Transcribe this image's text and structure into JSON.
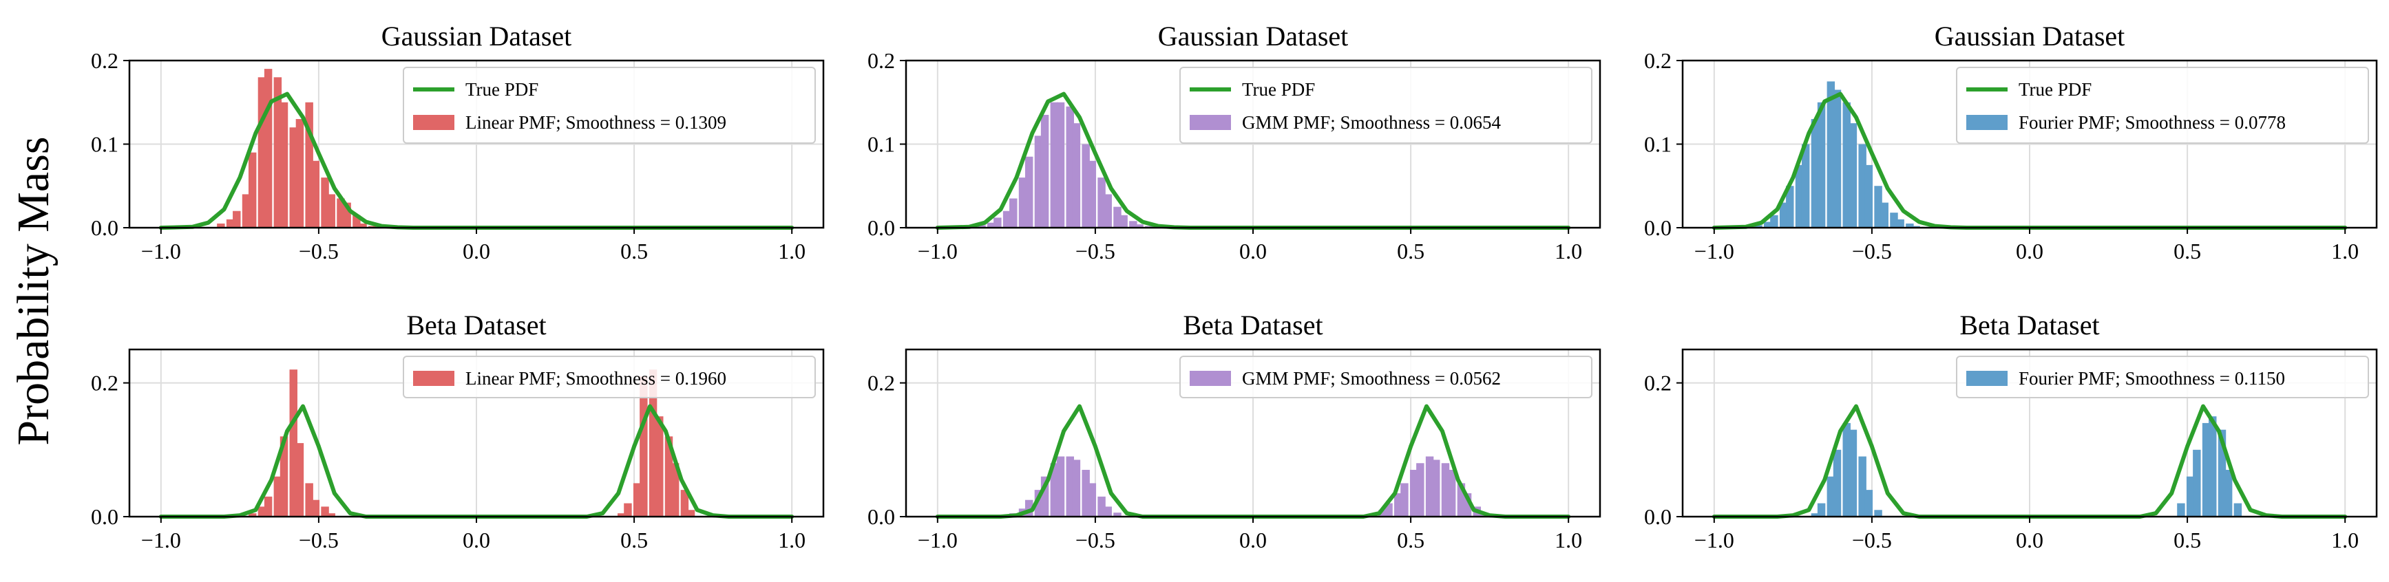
{
  "figure": {
    "ylabel": "Probability Mass"
  },
  "chart_data": [
    {
      "type": "bar",
      "title": "Gaussian Dataset",
      "xlim": [
        -1.1,
        1.1
      ],
      "ylim": [
        0,
        0.2
      ],
      "xticks": [
        "−1.0",
        "−0.5",
        "0.0",
        "0.5",
        "1.0"
      ],
      "yticks": [
        "0.0",
        "0.1",
        "0.2"
      ],
      "grid": true,
      "legend_position": "top-right",
      "pmf": {
        "name": "Linear PMF; Smoothness = 0.1309",
        "color": "#e06666",
        "x": [
          -0.81,
          -0.78,
          -0.76,
          -0.73,
          -0.71,
          -0.68,
          -0.66,
          -0.63,
          -0.61,
          -0.58,
          -0.56,
          -0.53,
          -0.51,
          -0.48,
          -0.46,
          -0.43,
          -0.41,
          -0.38,
          -0.36,
          -0.33
        ],
        "values": [
          0.005,
          0.01,
          0.02,
          0.04,
          0.09,
          0.18,
          0.19,
          0.18,
          0.15,
          0.12,
          0.13,
          0.15,
          0.08,
          0.06,
          0.04,
          0.035,
          0.03,
          0.015,
          0.005,
          0.002
        ]
      },
      "pdf": {
        "name": "True PDF",
        "color": "#2ca02c",
        "x": [
          -1.0,
          -0.9,
          -0.85,
          -0.8,
          -0.75,
          -0.7,
          -0.65,
          -0.6,
          -0.55,
          -0.5,
          -0.45,
          -0.4,
          -0.35,
          -0.3,
          -0.25,
          -0.2,
          0.0,
          0.5,
          1.0
        ],
        "values": [
          0.0,
          0.001,
          0.006,
          0.022,
          0.06,
          0.113,
          0.151,
          0.16,
          0.132,
          0.089,
          0.047,
          0.02,
          0.007,
          0.002,
          0.0005,
          0.0,
          0.0,
          0.0,
          0.0
        ]
      }
    },
    {
      "type": "bar",
      "title": "Gaussian Dataset",
      "xlim": [
        -1.1,
        1.1
      ],
      "ylim": [
        0,
        0.2
      ],
      "xticks": [
        "−1.0",
        "−0.5",
        "0.0",
        "0.5",
        "1.0"
      ],
      "yticks": [
        "0.0",
        "0.1",
        "0.2"
      ],
      "grid": true,
      "legend_position": "top-right",
      "pmf": {
        "name": "GMM PMF; Smoothness = 0.0654",
        "color": "#b08fd1",
        "x": [
          -0.86,
          -0.83,
          -0.81,
          -0.78,
          -0.76,
          -0.73,
          -0.71,
          -0.68,
          -0.66,
          -0.63,
          -0.61,
          -0.58,
          -0.56,
          -0.53,
          -0.51,
          -0.48,
          -0.46,
          -0.43,
          -0.41,
          -0.38,
          -0.36,
          -0.33
        ],
        "values": [
          0.003,
          0.006,
          0.012,
          0.02,
          0.035,
          0.06,
          0.085,
          0.11,
          0.135,
          0.15,
          0.15,
          0.145,
          0.125,
          0.1,
          0.08,
          0.06,
          0.04,
          0.025,
          0.015,
          0.008,
          0.004,
          0.002
        ]
      },
      "pdf": {
        "name": "True PDF",
        "color": "#2ca02c",
        "x": [
          -1.0,
          -0.9,
          -0.85,
          -0.8,
          -0.75,
          -0.7,
          -0.65,
          -0.6,
          -0.55,
          -0.5,
          -0.45,
          -0.4,
          -0.35,
          -0.3,
          -0.25,
          -0.2,
          0.0,
          0.5,
          1.0
        ],
        "values": [
          0.0,
          0.001,
          0.006,
          0.022,
          0.06,
          0.113,
          0.151,
          0.16,
          0.132,
          0.089,
          0.047,
          0.02,
          0.007,
          0.002,
          0.0005,
          0.0,
          0.0,
          0.0,
          0.0
        ]
      }
    },
    {
      "type": "bar",
      "title": "Gaussian Dataset",
      "xlim": [
        -1.1,
        1.1
      ],
      "ylim": [
        0,
        0.2
      ],
      "xticks": [
        "−1.0",
        "−0.5",
        "0.0",
        "0.5",
        "1.0"
      ],
      "yticks": [
        "0.0",
        "0.1",
        "0.2"
      ],
      "grid": true,
      "legend_position": "top-right",
      "pmf": {
        "name": "Fourier PMF; Smoothness = 0.0778",
        "color": "#5f9ecb",
        "x": [
          -0.86,
          -0.83,
          -0.81,
          -0.78,
          -0.76,
          -0.73,
          -0.71,
          -0.68,
          -0.66,
          -0.63,
          -0.61,
          -0.58,
          -0.56,
          -0.53,
          -0.51,
          -0.48,
          -0.46,
          -0.43,
          -0.41,
          -0.38,
          -0.36,
          -0.33
        ],
        "values": [
          0.003,
          0.007,
          0.015,
          0.03,
          0.05,
          0.075,
          0.1,
          0.13,
          0.15,
          0.175,
          0.165,
          0.15,
          0.125,
          0.1,
          0.075,
          0.05,
          0.03,
          0.018,
          0.01,
          0.005,
          0.002,
          0.001
        ]
      },
      "pdf": {
        "name": "True PDF",
        "color": "#2ca02c",
        "x": [
          -1.0,
          -0.9,
          -0.85,
          -0.8,
          -0.75,
          -0.7,
          -0.65,
          -0.6,
          -0.55,
          -0.5,
          -0.45,
          -0.4,
          -0.35,
          -0.3,
          -0.25,
          -0.2,
          0.0,
          0.5,
          1.0
        ],
        "values": [
          0.0,
          0.001,
          0.006,
          0.022,
          0.06,
          0.113,
          0.151,
          0.16,
          0.132,
          0.089,
          0.047,
          0.02,
          0.007,
          0.002,
          0.0005,
          0.0,
          0.0,
          0.0,
          0.0
        ]
      }
    },
    {
      "type": "bar",
      "title": "Beta Dataset",
      "xlim": [
        -1.1,
        1.1
      ],
      "ylim": [
        0,
        0.25
      ],
      "xticks": [
        "−1.0",
        "−0.5",
        "0.0",
        "0.5",
        "1.0"
      ],
      "yticks": [
        "0.0",
        "0.2"
      ],
      "grid": true,
      "legend_position": "top-right",
      "pmf": {
        "name": "Linear PMF; Smoothness = 0.1960",
        "color": "#e06666",
        "x": [
          -0.71,
          -0.68,
          -0.66,
          -0.63,
          -0.61,
          -0.58,
          -0.56,
          -0.53,
          -0.51,
          -0.48,
          -0.46,
          0.46,
          0.48,
          0.51,
          0.53,
          0.56,
          0.58,
          0.61,
          0.63,
          0.66,
          0.68
        ],
        "values": [
          0.005,
          0.015,
          0.03,
          0.06,
          0.12,
          0.22,
          0.11,
          0.05,
          0.025,
          0.015,
          0.005,
          0.005,
          0.02,
          0.05,
          0.21,
          0.22,
          0.15,
          0.12,
          0.08,
          0.04,
          0.01
        ]
      },
      "pdf": {
        "name": "True PDF",
        "color": "#2ca02c",
        "x": [
          -1.0,
          -0.8,
          -0.75,
          -0.7,
          -0.65,
          -0.6,
          -0.55,
          -0.5,
          -0.45,
          -0.4,
          -0.35,
          0.35,
          0.4,
          0.45,
          0.5,
          0.55,
          0.6,
          0.65,
          0.7,
          0.75,
          0.8,
          1.0
        ],
        "values": [
          0.0,
          0.0,
          0.002,
          0.01,
          0.055,
          0.128,
          0.165,
          0.105,
          0.035,
          0.005,
          0.0,
          0.0,
          0.005,
          0.035,
          0.105,
          0.165,
          0.128,
          0.055,
          0.01,
          0.002,
          0.0,
          0.0
        ]
      }
    },
    {
      "type": "bar",
      "title": "Beta Dataset",
      "xlim": [
        -1.1,
        1.1
      ],
      "ylim": [
        0,
        0.25
      ],
      "xticks": [
        "−1.0",
        "−0.5",
        "0.0",
        "0.5",
        "1.0"
      ],
      "yticks": [
        "0.0",
        "0.2"
      ],
      "grid": true,
      "legend_position": "top-right",
      "pmf": {
        "name": "GMM PMF; Smoothness = 0.0562",
        "color": "#b08fd1",
        "x": [
          -0.76,
          -0.73,
          -0.71,
          -0.68,
          -0.66,
          -0.63,
          -0.61,
          -0.58,
          -0.56,
          -0.53,
          -0.51,
          -0.48,
          -0.46,
          -0.43,
          0.38,
          0.41,
          0.43,
          0.46,
          0.48,
          0.51,
          0.53,
          0.56,
          0.58,
          0.61,
          0.63,
          0.66,
          0.68,
          0.71,
          0.73
        ],
        "values": [
          0.005,
          0.012,
          0.025,
          0.04,
          0.06,
          0.08,
          0.09,
          0.09,
          0.085,
          0.07,
          0.05,
          0.03,
          0.015,
          0.006,
          0.004,
          0.01,
          0.02,
          0.035,
          0.05,
          0.07,
          0.08,
          0.09,
          0.085,
          0.08,
          0.07,
          0.05,
          0.035,
          0.015,
          0.005
        ]
      },
      "pdf": {
        "name": "True PDF",
        "color": "#2ca02c",
        "x": [
          -1.0,
          -0.8,
          -0.75,
          -0.7,
          -0.65,
          -0.6,
          -0.55,
          -0.5,
          -0.45,
          -0.4,
          -0.35,
          0.35,
          0.4,
          0.45,
          0.5,
          0.55,
          0.6,
          0.65,
          0.7,
          0.75,
          0.8,
          1.0
        ],
        "values": [
          0.0,
          0.0,
          0.002,
          0.01,
          0.055,
          0.128,
          0.165,
          0.105,
          0.035,
          0.005,
          0.0,
          0.0,
          0.005,
          0.035,
          0.105,
          0.165,
          0.128,
          0.055,
          0.01,
          0.002,
          0.0,
          0.0
        ]
      }
    },
    {
      "type": "bar",
      "title": "Beta Dataset",
      "xlim": [
        -1.1,
        1.1
      ],
      "ylim": [
        0,
        0.25
      ],
      "xticks": [
        "−1.0",
        "−0.5",
        "0.0",
        "0.5",
        "1.0"
      ],
      "yticks": [
        "0.0",
        "0.2"
      ],
      "grid": true,
      "legend_position": "top-right",
      "pmf": {
        "name": "Fourier PMF; Smoothness = 0.1150",
        "color": "#5f9ecb",
        "x": [
          -0.68,
          -0.66,
          -0.63,
          -0.61,
          -0.58,
          -0.56,
          -0.53,
          -0.51,
          -0.48,
          0.48,
          0.51,
          0.53,
          0.56,
          0.58,
          0.61,
          0.63,
          0.66
        ],
        "values": [
          0.005,
          0.02,
          0.06,
          0.1,
          0.14,
          0.13,
          0.09,
          0.04,
          0.01,
          0.02,
          0.06,
          0.1,
          0.14,
          0.15,
          0.13,
          0.07,
          0.02
        ]
      },
      "pdf": {
        "name": "True PDF",
        "color": "#2ca02c",
        "x": [
          -1.0,
          -0.8,
          -0.75,
          -0.7,
          -0.65,
          -0.6,
          -0.55,
          -0.5,
          -0.45,
          -0.4,
          -0.35,
          0.35,
          0.4,
          0.45,
          0.5,
          0.55,
          0.6,
          0.65,
          0.7,
          0.75,
          0.8,
          1.0
        ],
        "values": [
          0.0,
          0.0,
          0.002,
          0.01,
          0.055,
          0.128,
          0.165,
          0.105,
          0.035,
          0.005,
          0.0,
          0.0,
          0.005,
          0.035,
          0.105,
          0.165,
          0.128,
          0.055,
          0.01,
          0.002,
          0.0,
          0.0
        ]
      }
    }
  ]
}
